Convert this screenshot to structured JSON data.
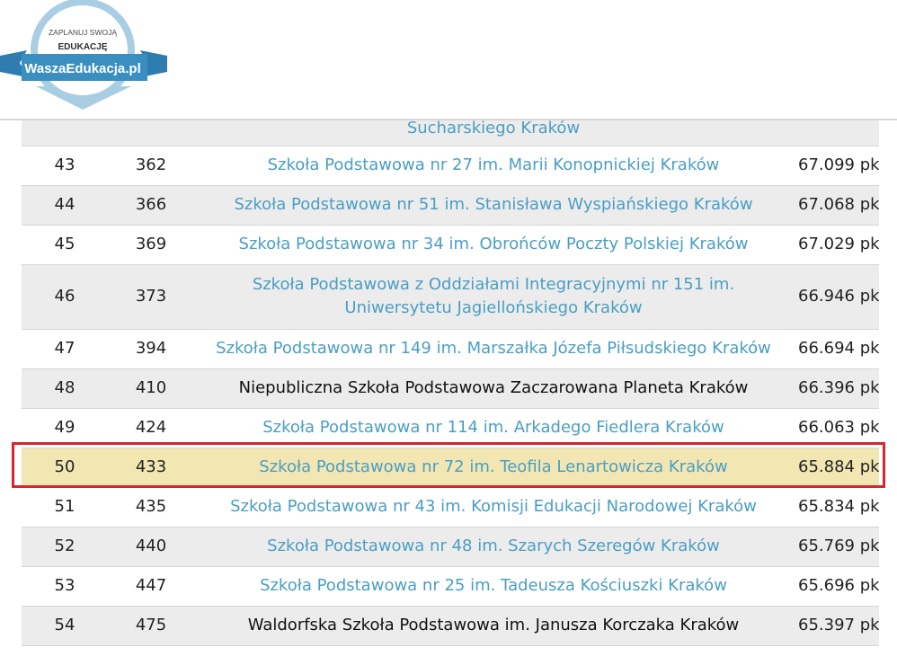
{
  "logo": {
    "top_text": "ZAPLANUJ SWOJĄ",
    "mid_text": "EDUKACJĘ",
    "brand": "WaszaEdukacja.pl"
  },
  "colors": {
    "link": "#4a9ec4",
    "row_alt": "#ececec",
    "highlight": "#f2e6b3",
    "outline": "#d9232d",
    "logo_blue": "#3a8fc0",
    "logo_light": "#a9cde3"
  },
  "partial_row": {
    "school": "Sucharskiego Kraków"
  },
  "rows": [
    {
      "rank": "43",
      "position": "362",
      "school": "Szkoła Podstawowa nr 27 im. Marii Konopnickiej Kraków",
      "points": "67.099 pkt",
      "link": true
    },
    {
      "rank": "44",
      "position": "366",
      "school": "Szkoła Podstawowa nr 51 im. Stanisława Wyspiańskiego Kraków",
      "points": "67.068 pkt",
      "link": true
    },
    {
      "rank": "45",
      "position": "369",
      "school": "Szkoła Podstawowa nr 34 im. Obrońców Poczty Polskiej Kraków",
      "points": "67.029 pkt",
      "link": true
    },
    {
      "rank": "46",
      "position": "373",
      "school": "Szkoła Podstawowa z Oddziałami Integracyjnymi nr 151 im. Uniwersytetu Jagiellońskiego Kraków",
      "points": "66.946 pkt",
      "link": true
    },
    {
      "rank": "47",
      "position": "394",
      "school": "Szkoła Podstawowa nr 149 im. Marszałka Józefa Piłsudskiego Kraków",
      "points": "66.694 pkt",
      "link": true
    },
    {
      "rank": "48",
      "position": "410",
      "school": "Niepubliczna Szkoła Podstawowa Zaczarowana Planeta Kraków",
      "points": "66.396 pkt",
      "link": false
    },
    {
      "rank": "49",
      "position": "424",
      "school": "Szkoła Podstawowa nr 114 im. Arkadego Fiedlera Kraków",
      "points": "66.063 pkt",
      "link": true
    },
    {
      "rank": "50",
      "position": "433",
      "school": "Szkoła Podstawowa nr 72 im. Teofila Lenartowicza Kraków",
      "points": "65.884 pkt",
      "link": true,
      "highlighted": true
    },
    {
      "rank": "51",
      "position": "435",
      "school": "Szkoła Podstawowa nr 43 im. Komisji Edukacji Narodowej Kraków",
      "points": "65.834 pkt",
      "link": true
    },
    {
      "rank": "52",
      "position": "440",
      "school": "Szkoła Podstawowa nr 48 im. Szarych Szeregów Kraków",
      "points": "65.769 pkt",
      "link": true
    },
    {
      "rank": "53",
      "position": "447",
      "school": "Szkoła Podstawowa nr 25 im. Tadeusza Kościuszki Kraków",
      "points": "65.696 pkt",
      "link": true
    },
    {
      "rank": "54",
      "position": "475",
      "school": "Waldorfska Szkoła Podstawowa im. Janusza Korczaka Kraków",
      "points": "65.397 pkt",
      "link": false
    }
  ]
}
